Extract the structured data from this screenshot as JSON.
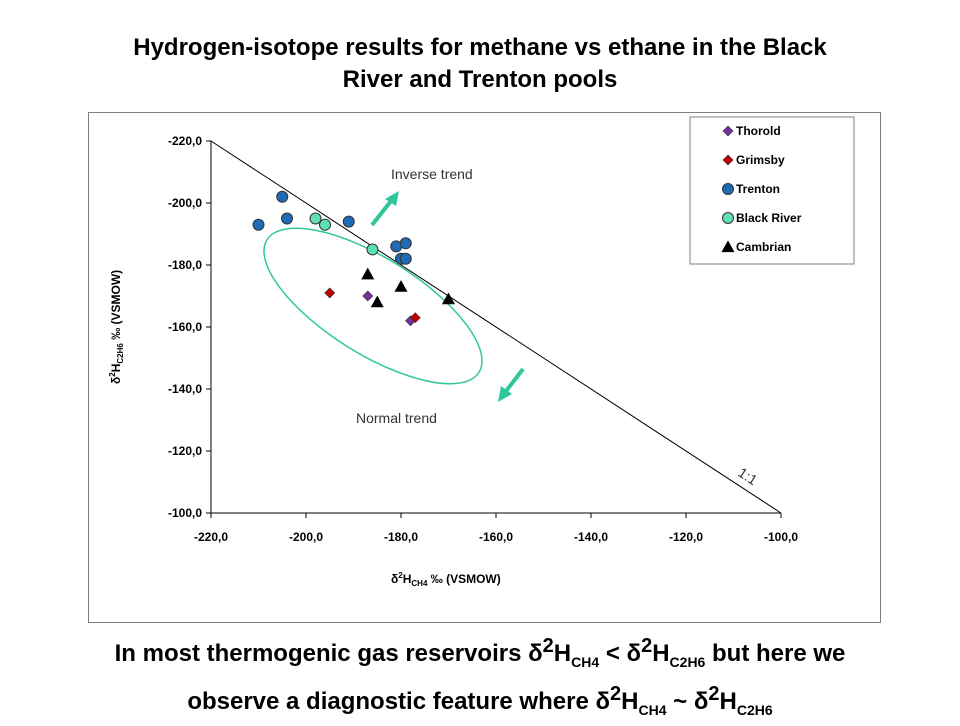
{
  "title": {
    "line1": "Hydrogen-isotope results for methane vs ethane in the Black",
    "line2": "River and Trenton pools"
  },
  "caption": {
    "line1_a": "In most thermogenic gas reservoirs ",
    "line1_b": " but here we",
    "line2_a": "observe a diagnostic feature where ",
    "delta": "δ",
    "sup2": "2",
    "H": "H",
    "sub_ch4": "CH4",
    "sub_c2h6": "C2H6",
    "lt": " < ",
    "approx": " ~ "
  },
  "chart_data": {
    "type": "scatter",
    "xlabel": {
      "delta": "δ",
      "sup": "2",
      "main": "H",
      "sub": "CH4",
      "unit": " ‰ (VSMOW)"
    },
    "ylabel": {
      "delta": "δ",
      "sup": "2",
      "main": "H",
      "sub": "C2H6",
      "unit": " ‰ (VSMOW)"
    },
    "xlim": [
      -220,
      -100
    ],
    "ylim": [
      -100,
      -220
    ],
    "x_ticks": [
      "-220,0",
      "-200,0",
      "-180,0",
      "-160,0",
      "-140,0",
      "-120,0",
      "-100,0"
    ],
    "y_ticks": [
      "-220,0",
      "-200,0",
      "-180,0",
      "-160,0",
      "-140,0",
      "-120,0",
      "-100,0"
    ],
    "x_tick_values": [
      -220,
      -200,
      -180,
      -160,
      -140,
      -120,
      -100
    ],
    "y_tick_values": [
      -220,
      -200,
      -180,
      -160,
      -140,
      -120,
      -100
    ],
    "legend_position": "top-right",
    "series": [
      {
        "name": "Thorold",
        "marker": "diamond",
        "color": "#7030a0",
        "points": [
          [
            -187,
            -170
          ],
          [
            -178,
            -162
          ]
        ]
      },
      {
        "name": "Grimsby",
        "marker": "diamond",
        "color": "#c00000",
        "points": [
          [
            -195,
            -171
          ],
          [
            -177,
            -163
          ]
        ]
      },
      {
        "name": "Trenton",
        "marker": "circle",
        "color": "#1f6bb5",
        "points": [
          [
            -210,
            -193
          ],
          [
            -205,
            -202
          ],
          [
            -204,
            -195
          ],
          [
            -191,
            -194
          ],
          [
            -181,
            -186
          ],
          [
            -180,
            -182
          ],
          [
            -179,
            -187
          ],
          [
            -179,
            -182
          ]
        ]
      },
      {
        "name": "Black River",
        "marker": "circle",
        "color": "#5ee0b0",
        "points": [
          [
            -198,
            -195
          ],
          [
            -196,
            -193
          ],
          [
            -186,
            -185
          ]
        ]
      },
      {
        "name": "Cambrian",
        "marker": "triangle",
        "color": "#000000",
        "points": [
          [
            -187,
            -177
          ],
          [
            -180,
            -173
          ],
          [
            -185,
            -168
          ],
          [
            -170,
            -169
          ]
        ]
      }
    ],
    "reference_line_label": "1:1",
    "annotations": {
      "inverse": "Inverse trend",
      "normal": "Normal trend"
    }
  },
  "colors": {
    "ellipse": "#2fc79a",
    "arrow": "#2fc79a",
    "frame": "#7f7f7f"
  }
}
